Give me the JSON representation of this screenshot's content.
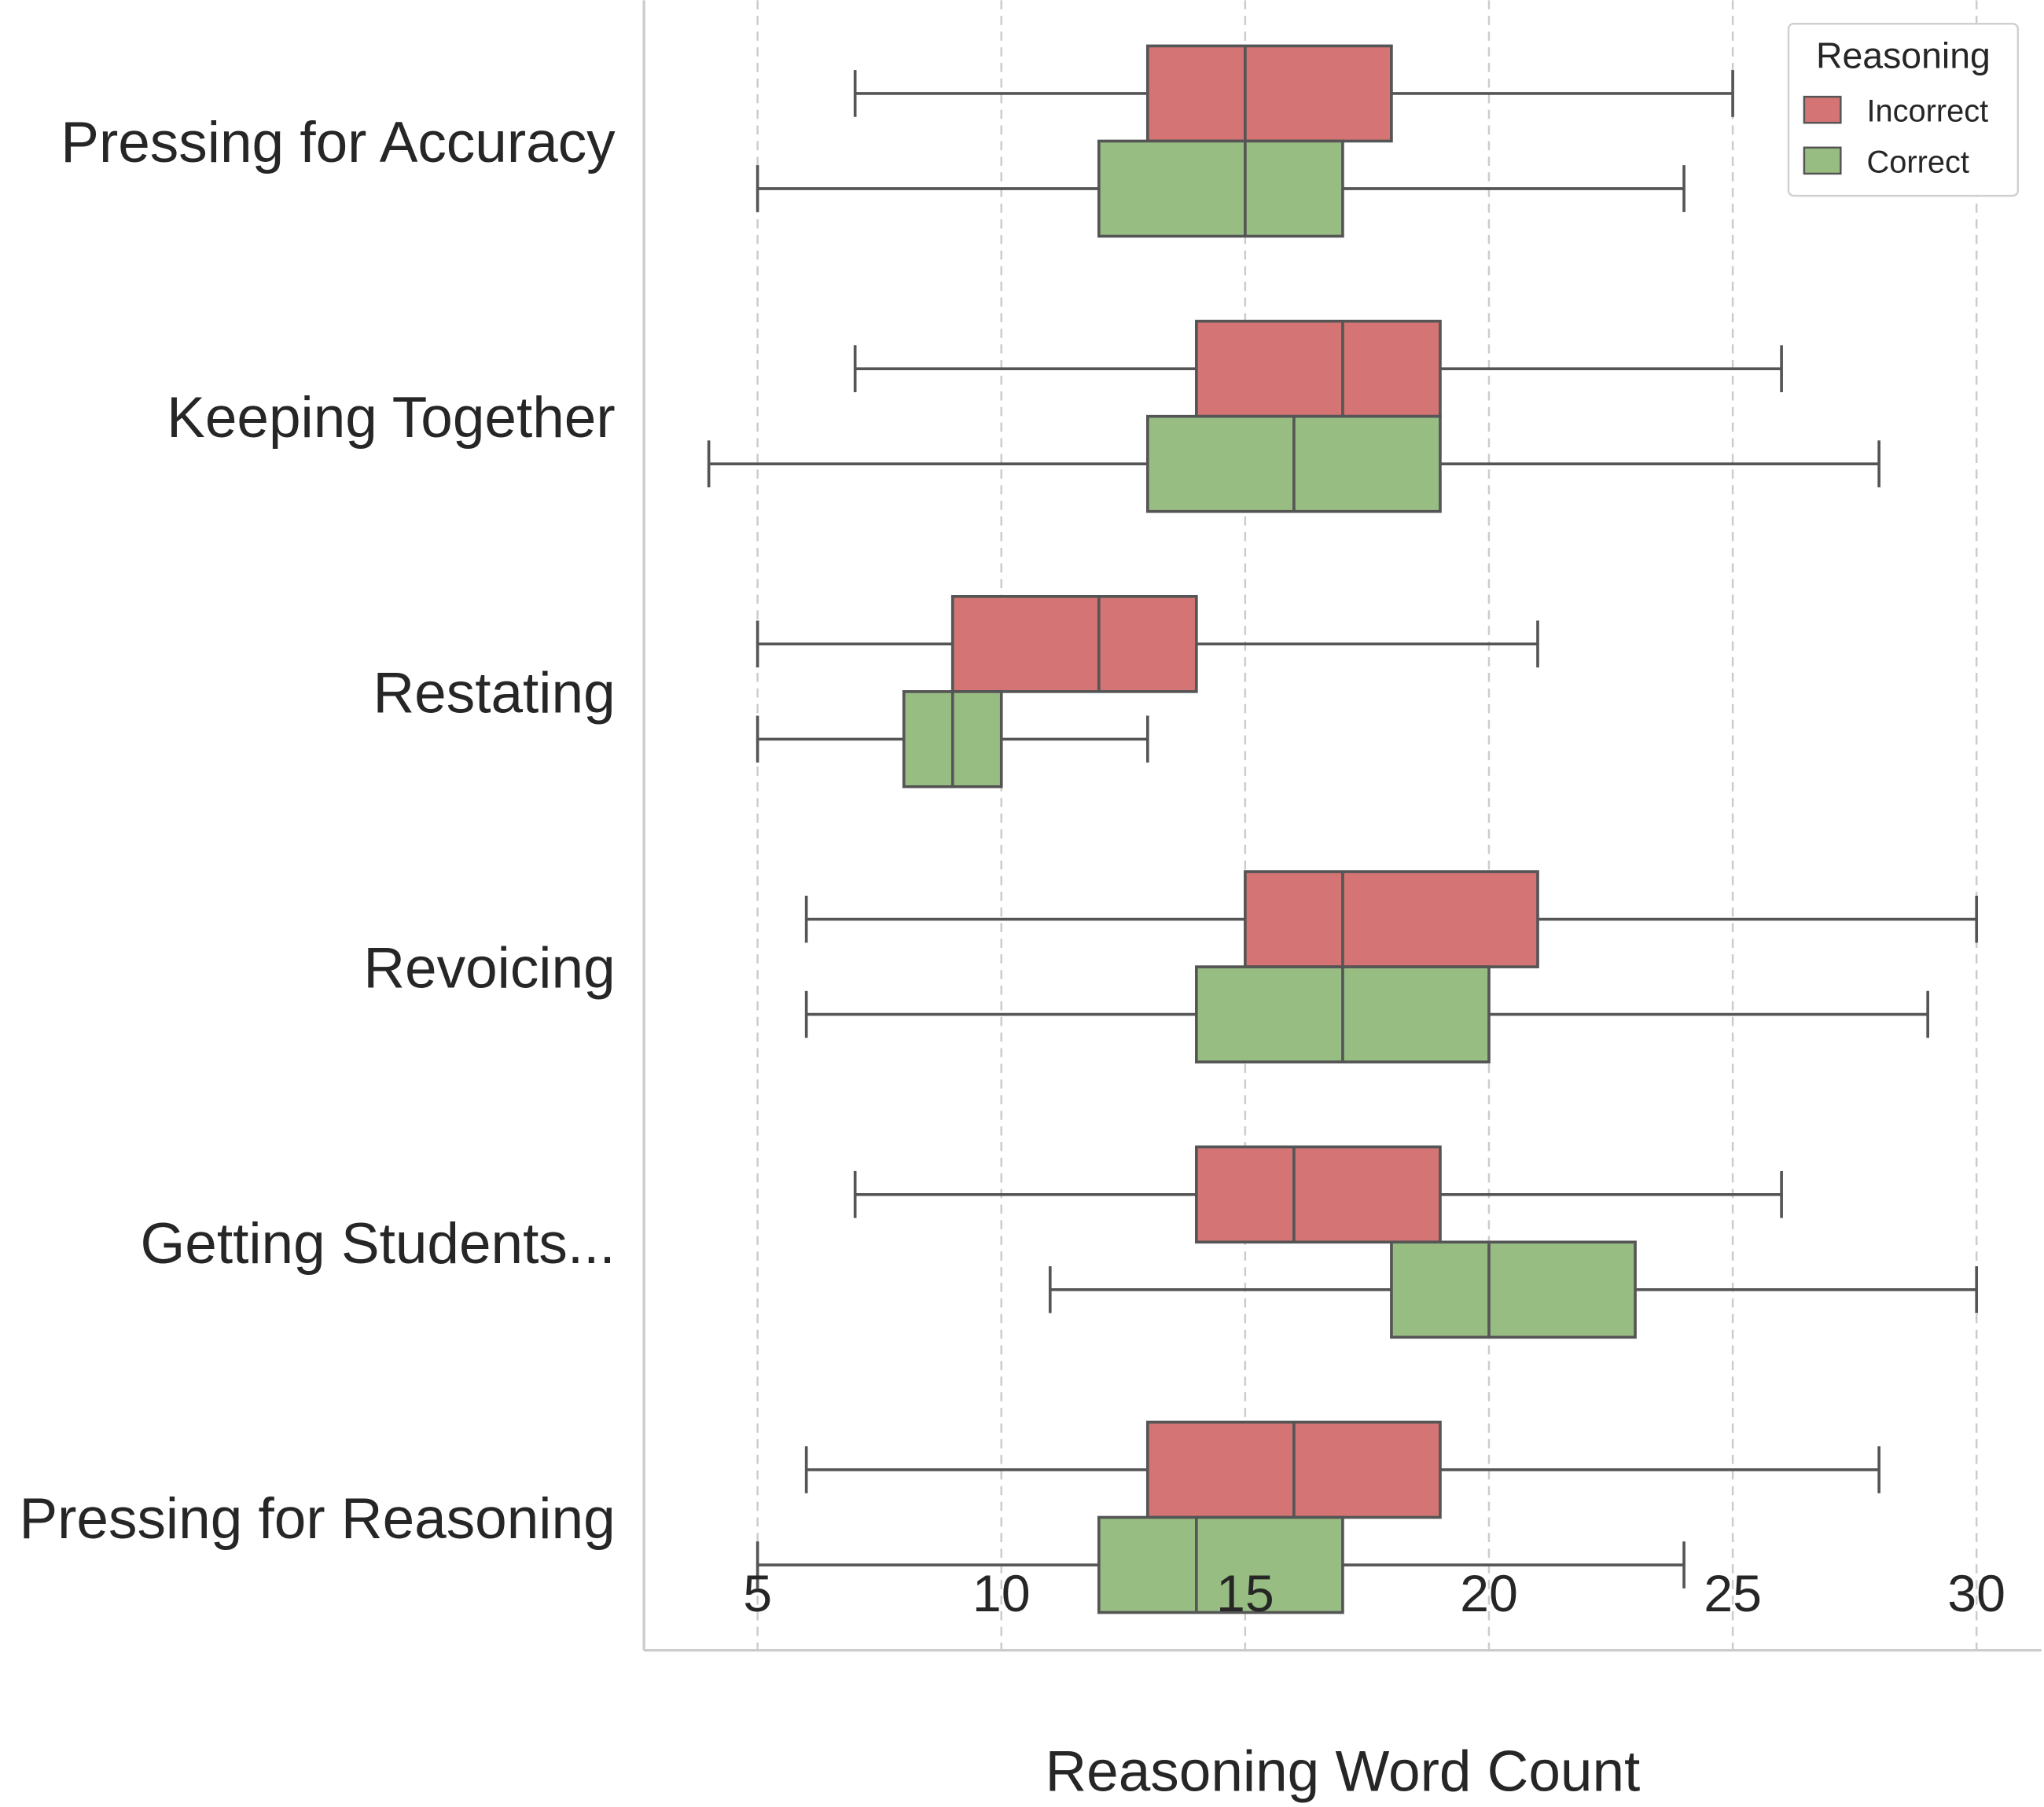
{
  "chart_data": {
    "type": "boxplot",
    "orientation": "horizontal",
    "title": "",
    "xlabel": "Reasoning Word Count",
    "ylabel": "",
    "xlim": [
      2.67,
      31.33
    ],
    "xticks": [
      5,
      10,
      15,
      20,
      25,
      30
    ],
    "xtick_labels": [
      "5",
      "10",
      "15",
      "20",
      "25",
      "30"
    ],
    "grid": "vertical dashed",
    "categories": [
      "Pressing for Accuracy",
      "Keeping Together",
      "Restating",
      "Revoicing",
      "Getting Students...",
      "Pressing for Reasoning"
    ],
    "legend": {
      "title": "Reasoning",
      "placement": "top-right"
    },
    "series": [
      {
        "name": "Incorrect",
        "color": "#d47474",
        "boxes": [
          {
            "whislo": 7,
            "q1": 13,
            "med": 15,
            "q3": 18,
            "whishi": 25
          },
          {
            "whislo": 7,
            "q1": 14,
            "med": 17,
            "q3": 19,
            "whishi": 26
          },
          {
            "whislo": 5,
            "q1": 9,
            "med": 12,
            "q3": 14,
            "whishi": 21
          },
          {
            "whislo": 6,
            "q1": 15,
            "med": 17,
            "q3": 21,
            "whishi": 30
          },
          {
            "whislo": 7,
            "q1": 14,
            "med": 16,
            "q3": 19,
            "whishi": 26
          },
          {
            "whislo": 6,
            "q1": 13,
            "med": 16,
            "q3": 19,
            "whishi": 28
          }
        ]
      },
      {
        "name": "Correct",
        "color": "#98bd83",
        "boxes": [
          {
            "whislo": 5,
            "q1": 12,
            "med": 15,
            "q3": 17,
            "whishi": 24
          },
          {
            "whislo": 4,
            "q1": 13,
            "med": 16,
            "q3": 19,
            "whishi": 28
          },
          {
            "whislo": 5,
            "q1": 8,
            "med": 9,
            "q3": 10,
            "whishi": 13
          },
          {
            "whislo": 6,
            "q1": 14,
            "med": 17,
            "q3": 20,
            "whishi": 29
          },
          {
            "whislo": 11,
            "q1": 18,
            "med": 20,
            "q3": 23,
            "whishi": 30
          },
          {
            "whislo": 5,
            "q1": 12,
            "med": 14,
            "q3": 17,
            "whishi": 24
          }
        ]
      }
    ]
  }
}
